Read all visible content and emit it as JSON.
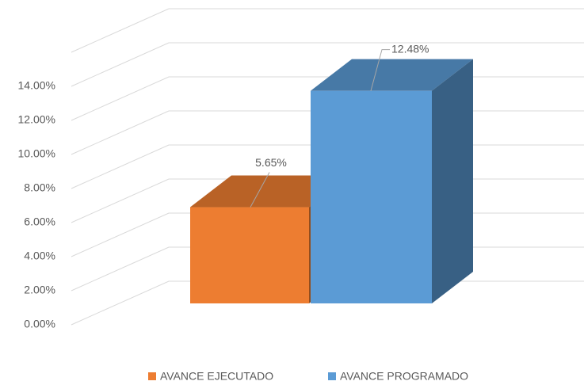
{
  "chart_data": {
    "type": "bar3d",
    "categories": [
      null
    ],
    "series": [
      {
        "name": "AVANCE EJECUTADO",
        "color": "#ED7D31",
        "values": [
          5.65
        ],
        "value_labels": [
          "5.65%"
        ]
      },
      {
        "name": "AVANCE PROGRAMADO",
        "color": "#5B9BD5",
        "values": [
          12.48
        ],
        "value_labels": [
          "12.48%"
        ]
      }
    ],
    "ylim": [
      0,
      16
    ],
    "yticks": [
      {
        "value": 0,
        "label": "0.00%"
      },
      {
        "value": 2,
        "label": "2.00%"
      },
      {
        "value": 4,
        "label": "4.00%"
      },
      {
        "value": 6,
        "label": "6.00%"
      },
      {
        "value": 8,
        "label": "8.00%"
      },
      {
        "value": 10,
        "label": "10.00%"
      },
      {
        "value": 12,
        "label": "12.00%"
      },
      {
        "value": 14,
        "label": "14.00%"
      }
    ],
    "grid": true,
    "legend": "bottom"
  }
}
